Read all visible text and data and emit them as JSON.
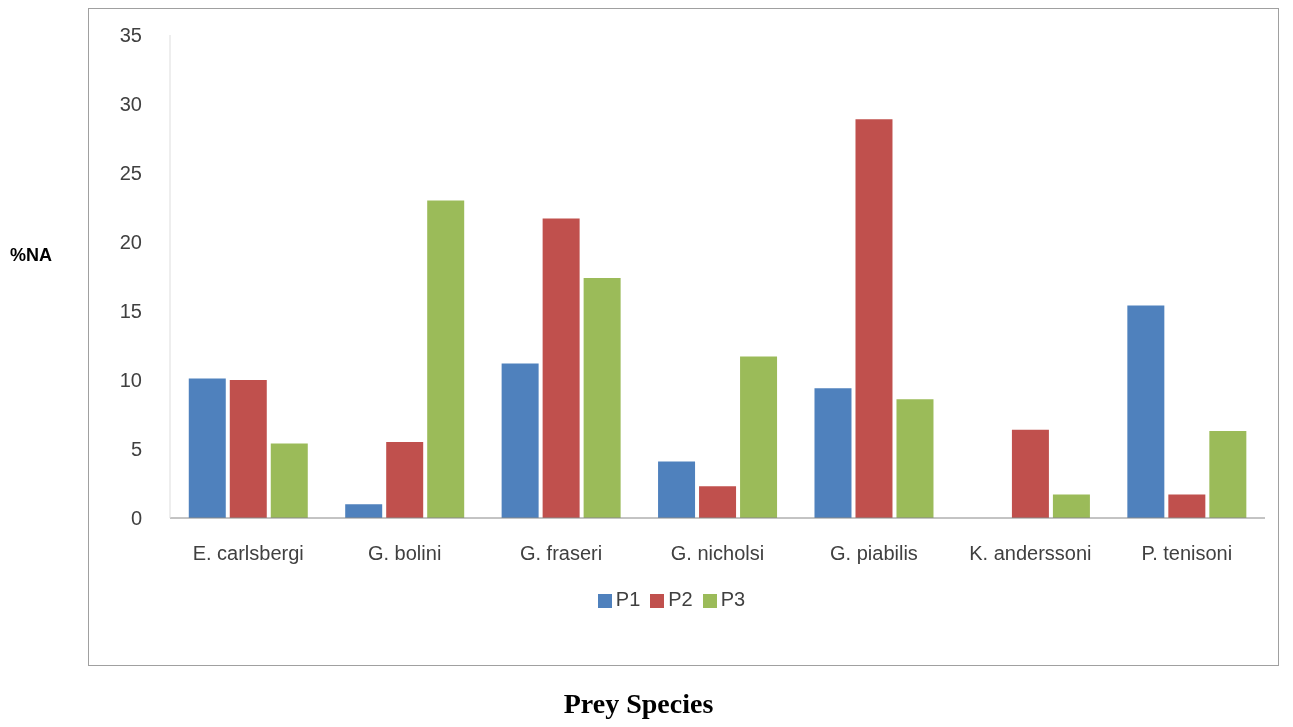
{
  "chart_data": {
    "type": "bar",
    "xlabel": "Prey Species",
    "ylabel": "%NA",
    "categories": [
      "E. carlsbergi",
      "G. bolini",
      "G. fraseri",
      "G. nicholsi",
      "G. piabilis",
      "K. anderssoni",
      "P. tenisoni"
    ],
    "series": [
      {
        "name": "P1",
        "color": "#4f81bd",
        "values": [
          10.1,
          1.0,
          11.2,
          4.1,
          9.4,
          0,
          15.4
        ]
      },
      {
        "name": "P2",
        "color": "#c0504d",
        "values": [
          10.0,
          5.5,
          21.7,
          2.3,
          28.9,
          6.4,
          1.7
        ]
      },
      {
        "name": "P3",
        "color": "#9bbb59",
        "values": [
          5.4,
          23.0,
          17.4,
          11.7,
          8.6,
          1.7,
          6.3
        ]
      }
    ],
    "ylim": [
      0,
      35
    ],
    "yticks": [
      0,
      5,
      10,
      15,
      20,
      25,
      30,
      35
    ],
    "grid": false,
    "legend": "bottom"
  }
}
